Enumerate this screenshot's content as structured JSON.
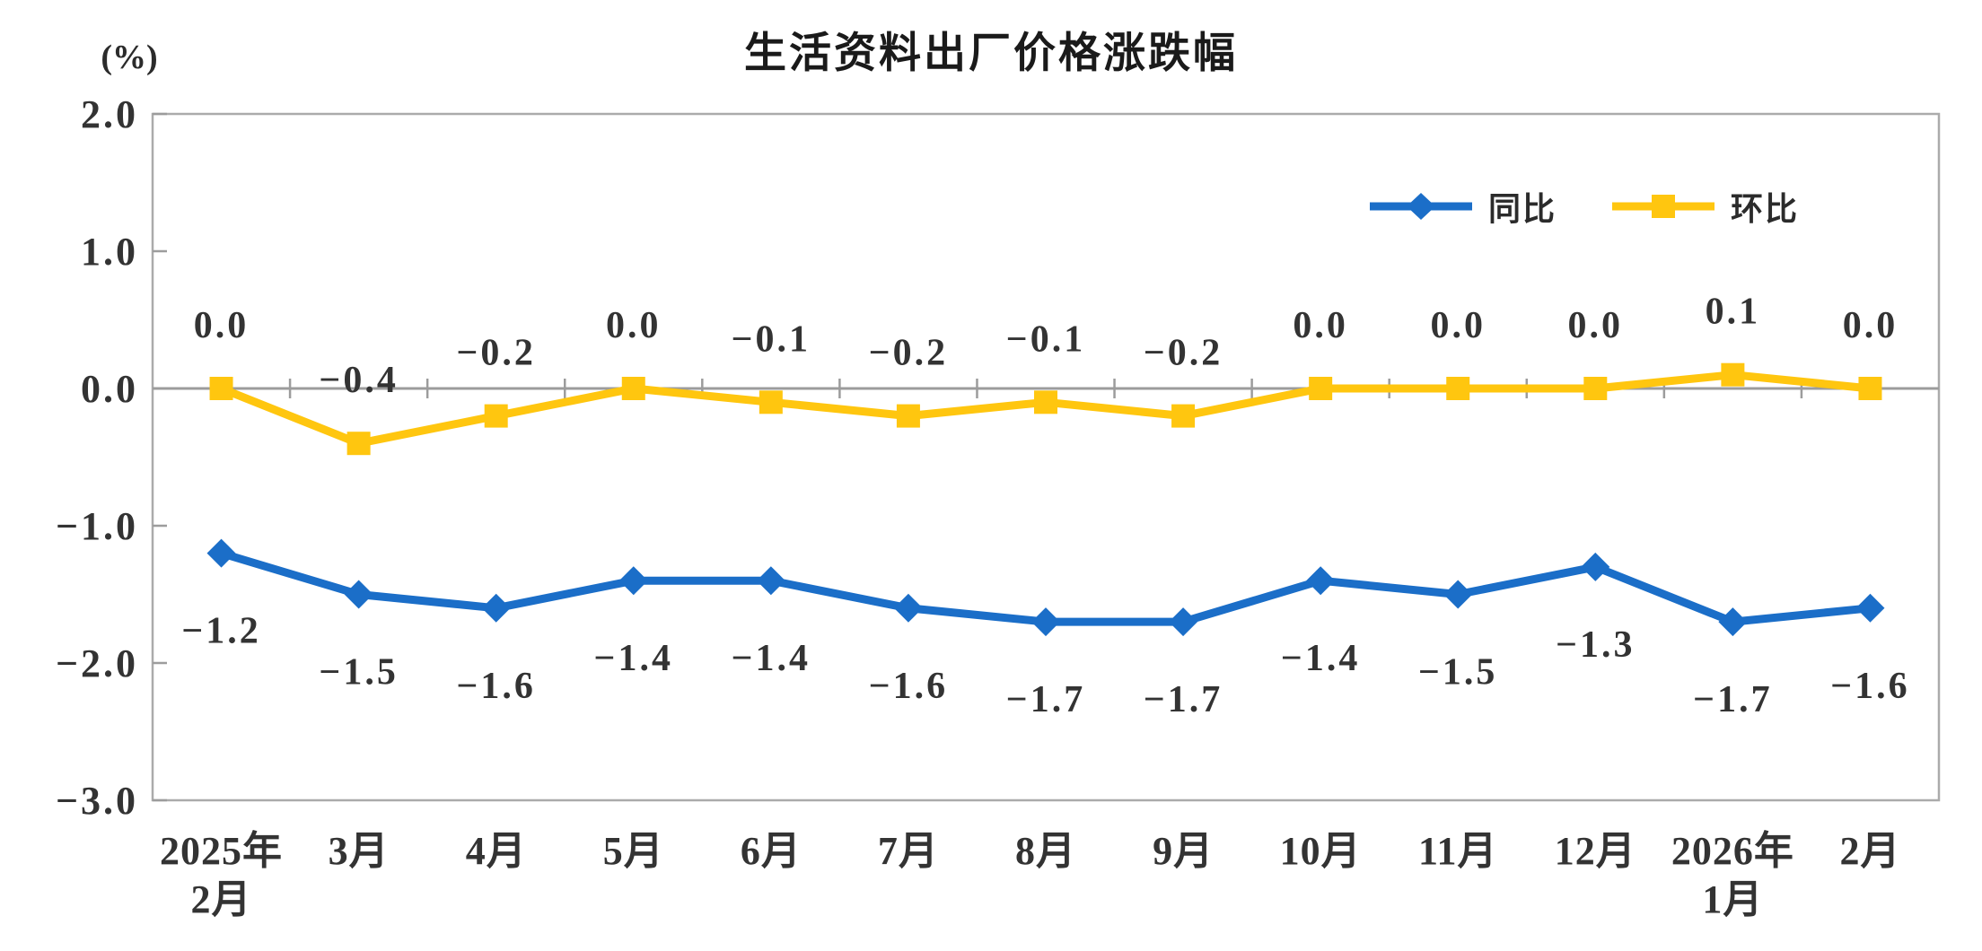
{
  "title": "生活资料出厂价格涨跌幅",
  "y_axis_unit": "(%)",
  "chart_data": {
    "type": "line",
    "title": "生活资料出厂价格涨跌幅",
    "ylabel": "(%)",
    "ylim": [
      -3.0,
      2.0
    ],
    "yticks": [
      2.0,
      1.0,
      0.0,
      -1.0,
      -2.0,
      -3.0
    ],
    "grid": false,
    "legend_position": "top-right",
    "categories": [
      [
        "2025年",
        "2月"
      ],
      [
        "3月"
      ],
      [
        "4月"
      ],
      [
        "5月"
      ],
      [
        "6月"
      ],
      [
        "7月"
      ],
      [
        "8月"
      ],
      [
        "9月"
      ],
      [
        "10月"
      ],
      [
        "11月"
      ],
      [
        "12月"
      ],
      [
        "2026年",
        "1月"
      ],
      [
        "2月"
      ]
    ],
    "series": [
      {
        "name": "同比",
        "color": "#1B6EC8",
        "marker": "diamond",
        "label_position": "below",
        "values": [
          -1.2,
          -1.5,
          -1.6,
          -1.4,
          -1.4,
          -1.6,
          -1.7,
          -1.7,
          -1.4,
          -1.5,
          -1.3,
          -1.7,
          -1.6
        ]
      },
      {
        "name": "环比",
        "color": "#FFC60F",
        "marker": "square",
        "label_position": "above",
        "values": [
          0.0,
          -0.4,
          -0.2,
          0.0,
          -0.1,
          -0.2,
          -0.1,
          -0.2,
          0.0,
          0.0,
          0.0,
          0.1,
          0.0
        ]
      }
    ],
    "colors": {
      "frame": "#ABABAB",
      "axis": "#9C9C9C",
      "tick": "#9C9C9C",
      "label": "#333333"
    }
  }
}
